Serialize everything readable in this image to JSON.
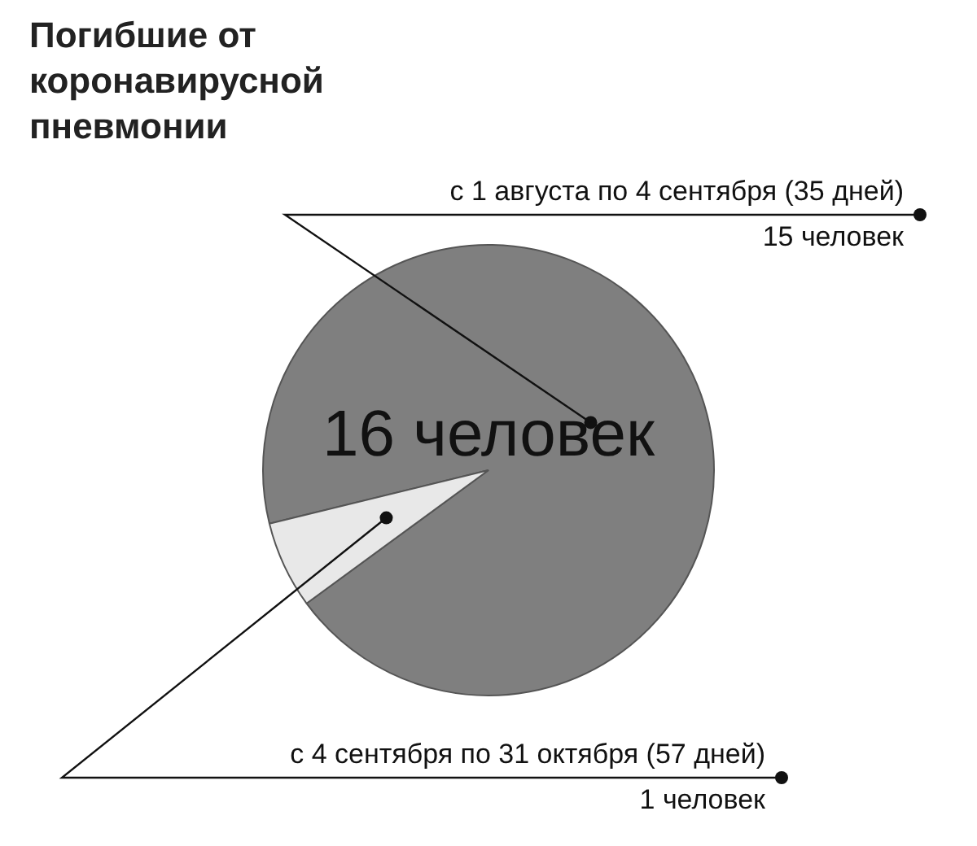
{
  "chart_data": {
    "type": "pie",
    "title": "Погибшие от коронавирусной пневмонии",
    "categories": [
      "с 1 августа по 4 сентября (35 дней)",
      "с 4 сентября по 31 октября (57 дней)"
    ],
    "values": [
      15,
      1
    ],
    "colors": [
      "#7f7f7f",
      "#e8e8e8"
    ],
    "value_labels": [
      "15 человек",
      "1 человек"
    ],
    "annotations": [
      "16 человек"
    ],
    "legend": false
  }
}
